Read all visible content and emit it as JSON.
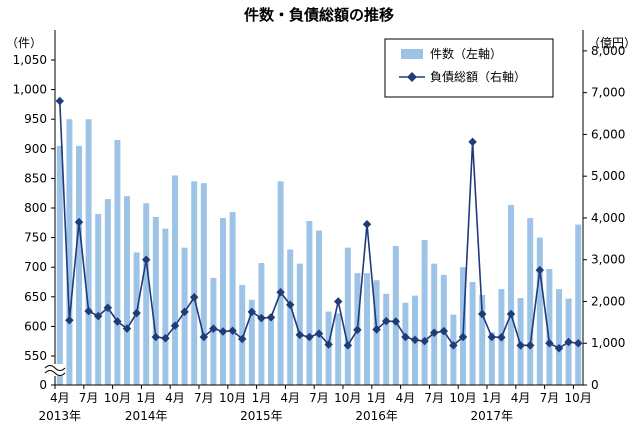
{
  "chart_data": {
    "type": "bar+line",
    "title": "件数・負債総額の推移",
    "left_unit": "（件）",
    "right_unit": "（億円）",
    "left_ticks": [
      "0",
      "550",
      "600",
      "650",
      "700",
      "750",
      "800",
      "850",
      "900",
      "950",
      "1,000",
      "1,050"
    ],
    "right_ticks": [
      "0",
      "1,000",
      "2,000",
      "3,000",
      "4,000",
      "5,000",
      "6,000",
      "7,000",
      "8,000"
    ],
    "left_axis": {
      "break": true,
      "min_shown": 525,
      "max": 1075
    },
    "right_axis": {
      "min": 0,
      "max": 8500
    },
    "x_month_labels": [
      "4月",
      "7月",
      "10月",
      "1月",
      "4月",
      "7月",
      "10月",
      "1月",
      "4月",
      "7月",
      "10月",
      "1月",
      "4月",
      "7月",
      "10月",
      "1月",
      "4月",
      "7月",
      "10月"
    ],
    "x_year_labels": [
      "2013年",
      "2014年",
      "2015年",
      "2016年",
      "2017年"
    ],
    "legend": {
      "bar_label": "件数（左軸）",
      "line_label": "負債総額（右軸）",
      "placement": "top-right"
    },
    "colors": {
      "bar": "#9dc3e6",
      "line": "#1f3b78",
      "axis": "#000000"
    },
    "series": [
      {
        "name": "件数（左軸）",
        "axis": "left",
        "type": "bar",
        "values": [
          905,
          950,
          905,
          950,
          790,
          815,
          915,
          820,
          725,
          808,
          785,
          765,
          855,
          733,
          845,
          842,
          682,
          783,
          793,
          670,
          645,
          707,
          615,
          845,
          730,
          706,
          778,
          762,
          625,
          622,
          733,
          690,
          690,
          678,
          655,
          736,
          640,
          652,
          746,
          706,
          687,
          620,
          700,
          675,
          653,
          590,
          663,
          805,
          648,
          783,
          750,
          697,
          663,
          647,
          772
        ]
      },
      {
        "name": "負債総額（右軸）",
        "axis": "right",
        "type": "line",
        "values": [
          6800,
          1550,
          3900,
          1770,
          1650,
          1850,
          1520,
          1350,
          1720,
          3000,
          1150,
          1120,
          1420,
          1750,
          2100,
          1150,
          1350,
          1280,
          1300,
          1100,
          1750,
          1600,
          1620,
          2220,
          1920,
          1200,
          1150,
          1230,
          970,
          2000,
          950,
          1320,
          3850,
          1330,
          1530,
          1520,
          1150,
          1080,
          1050,
          1250,
          1290,
          950,
          1150,
          5820,
          1700,
          1150,
          1140,
          1700,
          950,
          950,
          2750,
          1000,
          880,
          1030,
          1000
        ]
      }
    ]
  }
}
